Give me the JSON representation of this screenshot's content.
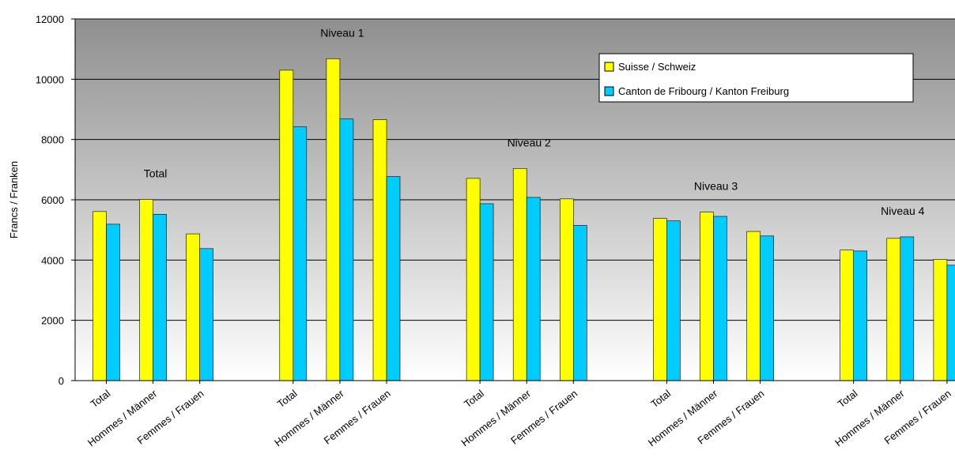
{
  "chart_data": {
    "type": "bar",
    "ylabel": "Francs / Franken",
    "ylim": [
      0,
      12000
    ],
    "yticks": [
      0,
      2000,
      4000,
      6000,
      8000,
      10000,
      12000
    ],
    "grid": true,
    "legend_position": "top-right",
    "series": [
      {
        "name": "Suisse / Schweiz",
        "color": "#ffff00",
        "values": [
          5610,
          6010,
          4870,
          10300,
          10680,
          8660,
          6710,
          7040,
          6030,
          5380,
          5590,
          4950,
          4330,
          4720,
          4020
        ]
      },
      {
        "name": "Canton de Fribourg / Kanton Freiburg",
        "color": "#00ccff",
        "values": [
          5190,
          5520,
          4380,
          8420,
          8680,
          6770,
          5870,
          6080,
          5150,
          5300,
          5450,
          4800,
          4300,
          4770,
          3830
        ]
      }
    ],
    "groups": [
      {
        "label": "Total",
        "categories": [
          "Total",
          "Hommes / Männer",
          "Femmes / Frauen"
        ]
      },
      {
        "label": "Niveau 1",
        "categories": [
          "Total",
          "Hommes / Männer",
          "Femmes / Frauen"
        ]
      },
      {
        "label": "Niveau 2",
        "categories": [
          "Total",
          "Hommes / Männer",
          "Femmes / Frauen"
        ]
      },
      {
        "label": "Niveau 3",
        "categories": [
          "Total",
          "Hommes / Männer",
          "Femmes / Frauen"
        ]
      },
      {
        "label": "Niveau 4",
        "categories": [
          "Total",
          "Hommes / Männer",
          "Femmes / Frauen"
        ]
      }
    ]
  }
}
